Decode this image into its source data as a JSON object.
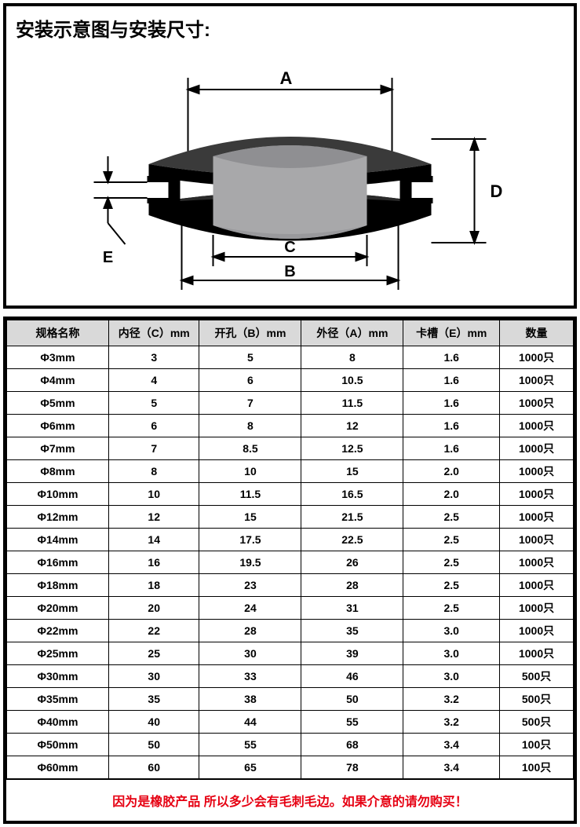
{
  "title": "安装示意图与安装尺寸:",
  "diagram": {
    "labels": {
      "A": "A",
      "B": "B",
      "C": "C",
      "D": "D",
      "E": "E"
    },
    "colors": {
      "grommet_top": "#444444",
      "grommet_dark": "#000000",
      "inner_light": "#a8a8aa",
      "inner_shade": "#8d8d90",
      "bg": "#ffffff",
      "line": "#000000"
    }
  },
  "table": {
    "headers": [
      "规格名称",
      "内径（C）mm",
      "开孔（B）mm",
      "外径（A）mm",
      "卡槽（E）mm",
      "数量"
    ],
    "col_widths": [
      "18%",
      "16%",
      "18%",
      "18%",
      "17%",
      "13%"
    ],
    "rows": [
      [
        "Φ3mm",
        "3",
        "5",
        "8",
        "1.6",
        "1000只"
      ],
      [
        "Φ4mm",
        "4",
        "6",
        "10.5",
        "1.6",
        "1000只"
      ],
      [
        "Φ5mm",
        "5",
        "7",
        "11.5",
        "1.6",
        "1000只"
      ],
      [
        "Φ6mm",
        "6",
        "8",
        "12",
        "1.6",
        "1000只"
      ],
      [
        "Φ7mm",
        "7",
        "8.5",
        "12.5",
        "1.6",
        "1000只"
      ],
      [
        "Φ8mm",
        "8",
        "10",
        "15",
        "2.0",
        "1000只"
      ],
      [
        "Φ10mm",
        "10",
        "11.5",
        "16.5",
        "2.0",
        "1000只"
      ],
      [
        "Φ12mm",
        "12",
        "15",
        "21.5",
        "2.5",
        "1000只"
      ],
      [
        "Φ14mm",
        "14",
        "17.5",
        "22.5",
        "2.5",
        "1000只"
      ],
      [
        "Φ16mm",
        "16",
        "19.5",
        "26",
        "2.5",
        "1000只"
      ],
      [
        "Φ18mm",
        "18",
        "23",
        "28",
        "2.5",
        "1000只"
      ],
      [
        "Φ20mm",
        "20",
        "24",
        "31",
        "2.5",
        "1000只"
      ],
      [
        "Φ22mm",
        "22",
        "28",
        "35",
        "3.0",
        "1000只"
      ],
      [
        "Φ25mm",
        "25",
        "30",
        "39",
        "3.0",
        "1000只"
      ],
      [
        "Φ30mm",
        "30",
        "33",
        "46",
        "3.0",
        "500只"
      ],
      [
        "Φ35mm",
        "35",
        "38",
        "50",
        "3.2",
        "500只"
      ],
      [
        "Φ40mm",
        "40",
        "44",
        "55",
        "3.2",
        "500只"
      ],
      [
        "Φ50mm",
        "50",
        "55",
        "68",
        "3.4",
        "100只"
      ],
      [
        "Φ60mm",
        "60",
        "65",
        "78",
        "3.4",
        "100只"
      ]
    ]
  },
  "notice": "因为是橡胶产品 所以多少会有毛刺毛边。如果介意的请勿购买！"
}
